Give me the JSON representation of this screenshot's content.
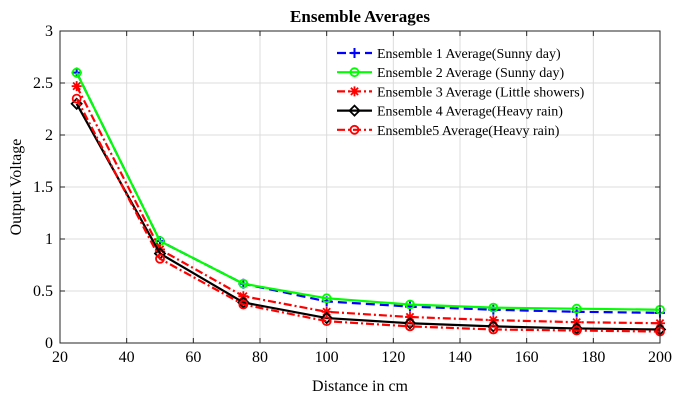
{
  "chart_data": {
    "type": "line",
    "title": "Ensemble Averages",
    "xlabel": "Distance in cm",
    "ylabel": "Output Voltage",
    "xlim": [
      20,
      200
    ],
    "ylim": [
      0,
      3
    ],
    "xticks": [
      20,
      40,
      60,
      80,
      100,
      120,
      140,
      160,
      180,
      200
    ],
    "yticks": [
      0,
      0.5,
      1,
      1.5,
      2,
      2.5,
      3
    ],
    "ytick_labels": [
      "0",
      "0.5",
      "1",
      "1.5",
      "2",
      "2.5",
      "3"
    ],
    "grid": true,
    "legend_position": "top-right",
    "x": [
      25,
      50,
      75,
      100,
      125,
      150,
      175,
      200
    ],
    "series": [
      {
        "name": "Ensemble 1 Average(Sunny day)",
        "values": [
          2.6,
          0.98,
          0.57,
          0.4,
          0.35,
          0.32,
          0.3,
          0.29
        ],
        "color": "#0000ff",
        "dash": "9 5",
        "marker": "plus"
      },
      {
        "name": "Ensemble 2 Average (Sunny day)",
        "values": [
          2.6,
          0.98,
          0.57,
          0.43,
          0.37,
          0.34,
          0.33,
          0.32
        ],
        "color": "#00ff00",
        "dash": "",
        "marker": "circle"
      },
      {
        "name": "Ensemble 3 Average (Little showers)",
        "values": [
          2.47,
          0.9,
          0.45,
          0.3,
          0.25,
          0.22,
          0.2,
          0.19
        ],
        "color": "#ff0000",
        "dash": "8 3 2 3",
        "marker": "star"
      },
      {
        "name": "Ensemble 4 Average(Heavy rain)",
        "values": [
          2.3,
          0.86,
          0.39,
          0.24,
          0.19,
          0.16,
          0.14,
          0.13
        ],
        "color": "#000000",
        "dash": "",
        "marker": "diamond"
      },
      {
        "name": "Ensemble5 Average(Heavy rain)",
        "values": [
          2.35,
          0.81,
          0.37,
          0.21,
          0.16,
          0.13,
          0.12,
          0.11
        ],
        "color": "#ff0000",
        "dash": "8 3 2 3",
        "marker": "circle"
      }
    ]
  }
}
